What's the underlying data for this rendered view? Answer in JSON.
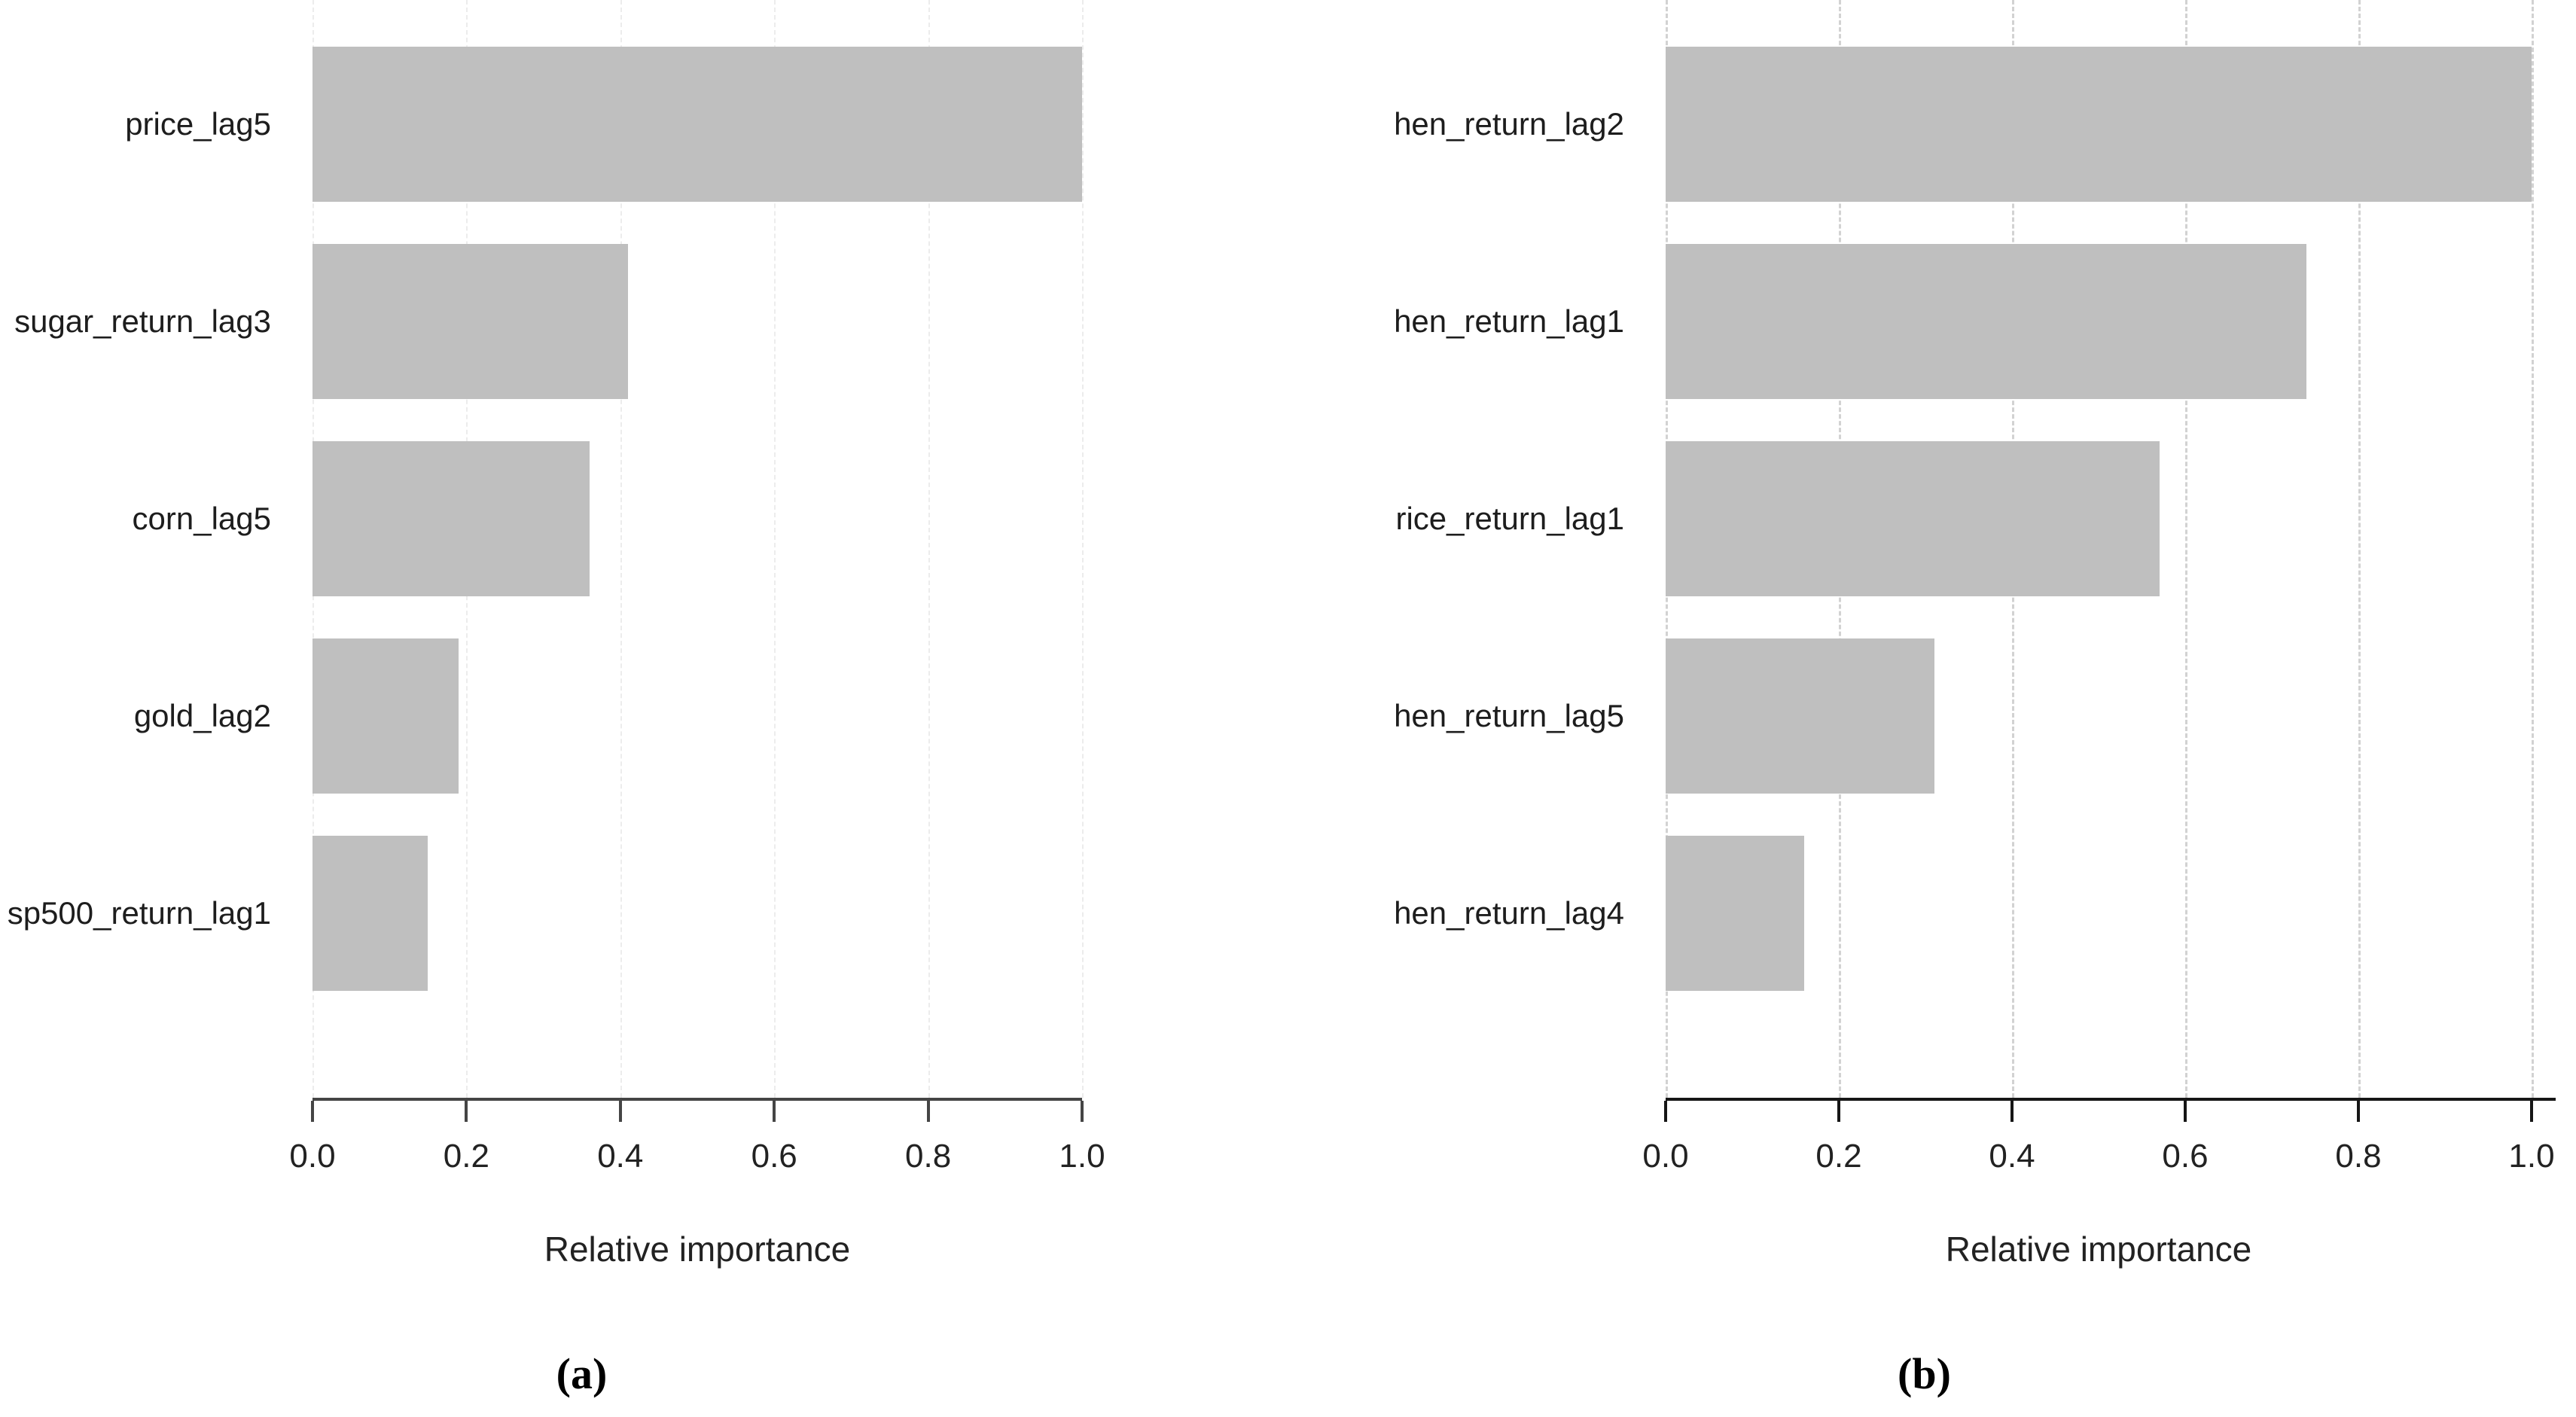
{
  "figure": {
    "background": "#ffffff",
    "bar_color": "#bfbfbf",
    "text_color": "#222222",
    "axis_color_a": "#454545",
    "axis_color_b": "#161616",
    "gridline_color_a": "#ececec",
    "gridline_color_b": "#d2d2d2"
  },
  "chart_data": [
    {
      "type": "bar",
      "orientation": "horizontal",
      "caption": "(a)",
      "xlabel": "Relative importance",
      "xlim": [
        0,
        1
      ],
      "xticks": [
        "0.0",
        "0.2",
        "0.4",
        "0.6",
        "0.8",
        "1.0"
      ],
      "grid": "vertical-dashed",
      "legend": "none",
      "categories": [
        "price_lag5",
        "sugar_return_lag3",
        "corn_lag5",
        "gold_lag2",
        "sp500_return_lag1"
      ],
      "values": [
        1.0,
        0.41,
        0.36,
        0.19,
        0.15
      ]
    },
    {
      "type": "bar",
      "orientation": "horizontal",
      "caption": "(b)",
      "xlabel": "Relative importance",
      "xlim": [
        0,
        1
      ],
      "xticks": [
        "0.0",
        "0.2",
        "0.4",
        "0.6",
        "0.8",
        "1.0"
      ],
      "grid": "vertical-dashed",
      "legend": "none",
      "categories": [
        "hen_return_lag2",
        "hen_return_lag1",
        "rice_return_lag1",
        "hen_return_lag5",
        "hen_return_lag4"
      ],
      "values": [
        1.0,
        0.74,
        0.57,
        0.31,
        0.16
      ]
    }
  ]
}
